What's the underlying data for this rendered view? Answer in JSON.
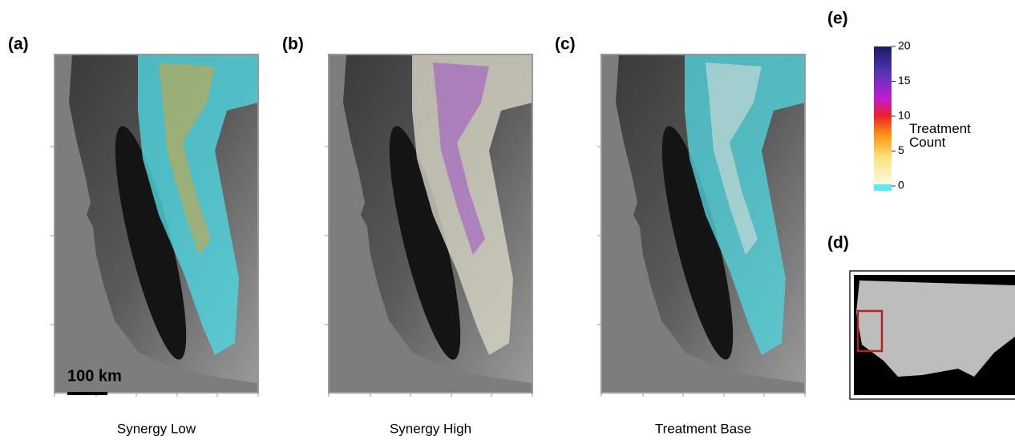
{
  "panels": [
    {
      "label": "(a)",
      "title": "Synergy Low"
    },
    {
      "label": "(b)",
      "title": "Synergy High"
    },
    {
      "label": "(c)",
      "title": "Treatment Base"
    }
  ],
  "scale_bar": "100 km",
  "legend": {
    "label": "(e)",
    "title": "Treatment Count",
    "lim": [
      0,
      20
    ],
    "ticks": [
      0,
      5,
      10,
      15,
      20
    ]
  },
  "inset": {
    "label": "(d)"
  }
}
